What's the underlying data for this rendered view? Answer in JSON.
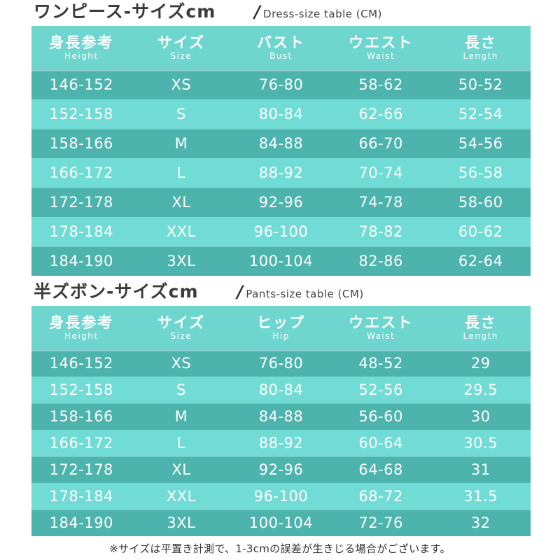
{
  "page": {
    "background": "#ffffff",
    "colors": {
      "header_bg": "#6fd6cf",
      "row_dark": "#4db3ad",
      "row_light": "#71dcd5",
      "row_text": "#ffffff",
      "title_text": "#3c3c3c"
    }
  },
  "tables": [
    {
      "title_jp": "ワンピース-サイズcm",
      "title_slash": "/",
      "title_en": "Dress-size table (CM)",
      "columns": [
        {
          "jp": "身長参考",
          "en": "Height"
        },
        {
          "jp": "サイズ",
          "en": "Size"
        },
        {
          "jp": "バスト",
          "en": "Bust"
        },
        {
          "jp": "ウエスト",
          "en": "Waist"
        },
        {
          "jp": "長さ",
          "en": "Length"
        }
      ],
      "rows": [
        [
          "146-152",
          "XS",
          "76-80",
          "58-62",
          "50-52"
        ],
        [
          "152-158",
          "S",
          "80-84",
          "62-66",
          "52-54"
        ],
        [
          "158-166",
          "M",
          "84-88",
          "66-70",
          "54-56"
        ],
        [
          "166-172",
          "L",
          "88-92",
          "70-74",
          "56-58"
        ],
        [
          "172-178",
          "XL",
          "92-96",
          "74-78",
          "58-60"
        ],
        [
          "178-184",
          "XXL",
          "96-100",
          "78-82",
          "60-62"
        ],
        [
          "184-190",
          "3XL",
          "100-104",
          "82-86",
          "62-64"
        ]
      ]
    },
    {
      "title_jp": "半ズボン-サイズcm",
      "title_slash": "/",
      "title_en": "Pants-size table (CM)",
      "columns": [
        {
          "jp": "身長参考",
          "en": "Height"
        },
        {
          "jp": "サイズ",
          "en": "Size"
        },
        {
          "jp": "ヒップ",
          "en": "Hip"
        },
        {
          "jp": "ウエスト",
          "en": "Waist"
        },
        {
          "jp": "長さ",
          "en": "Length"
        }
      ],
      "rows": [
        [
          "146-152",
          "XS",
          "76-80",
          "48-52",
          "29"
        ],
        [
          "152-158",
          "S",
          "80-84",
          "52-56",
          "29.5"
        ],
        [
          "158-166",
          "M",
          "84-88",
          "56-60",
          "30"
        ],
        [
          "166-172",
          "L",
          "88-92",
          "60-64",
          "30.5"
        ],
        [
          "172-178",
          "XL",
          "92-96",
          "64-68",
          "31"
        ],
        [
          "178-184",
          "XXL",
          "96-100",
          "68-72",
          "31.5"
        ],
        [
          "184-190",
          "3XL",
          "100-104",
          "72-76",
          "32"
        ]
      ]
    }
  ],
  "footnote": "※サイズは平置き計測で、1-3cmの誤差が生きじる場合がございます。"
}
